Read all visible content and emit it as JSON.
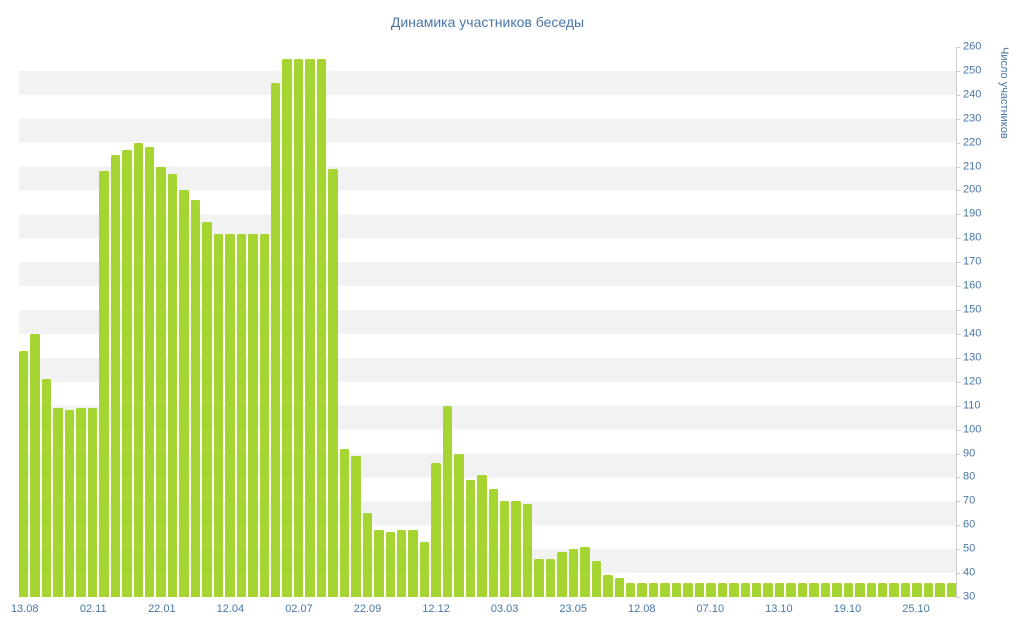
{
  "chart_data": {
    "type": "bar",
    "title": "Динамика участников беседы",
    "xlabel": "",
    "ylabel": "Число участников",
    "ylim": [
      30,
      260
    ],
    "y_tick_step": 10,
    "x_tick_labels": [
      "13.08",
      "02.11",
      "22.01",
      "12.04",
      "02.07",
      "22.09",
      "12.12",
      "03.03",
      "23.05",
      "12.08",
      "07.10",
      "13.10",
      "19.10",
      "25.10"
    ],
    "x_tick_every_n_bars": 6,
    "values": [
      133,
      140,
      121,
      109,
      108,
      109,
      109,
      208,
      215,
      217,
      220,
      218,
      210,
      207,
      200,
      196,
      187,
      182,
      182,
      182,
      182,
      182,
      245,
      255,
      255,
      255,
      255,
      209,
      92,
      89,
      65,
      58,
      57,
      58,
      58,
      53,
      86,
      110,
      90,
      79,
      81,
      75,
      70,
      70,
      69,
      46,
      46,
      49,
      50,
      51,
      45,
      39,
      38,
      36,
      36,
      36,
      36,
      36,
      36,
      36,
      36,
      36,
      36,
      36,
      36,
      36,
      36,
      36,
      36,
      36,
      36,
      36,
      36,
      36,
      36,
      36,
      36,
      36,
      36,
      36,
      36,
      36
    ],
    "bar_color": "#a6d532",
    "label_color": "#4a76a8",
    "stripe_color": "#f2f2f2",
    "grid": "striped-horizontal-bands",
    "legend": "none"
  }
}
